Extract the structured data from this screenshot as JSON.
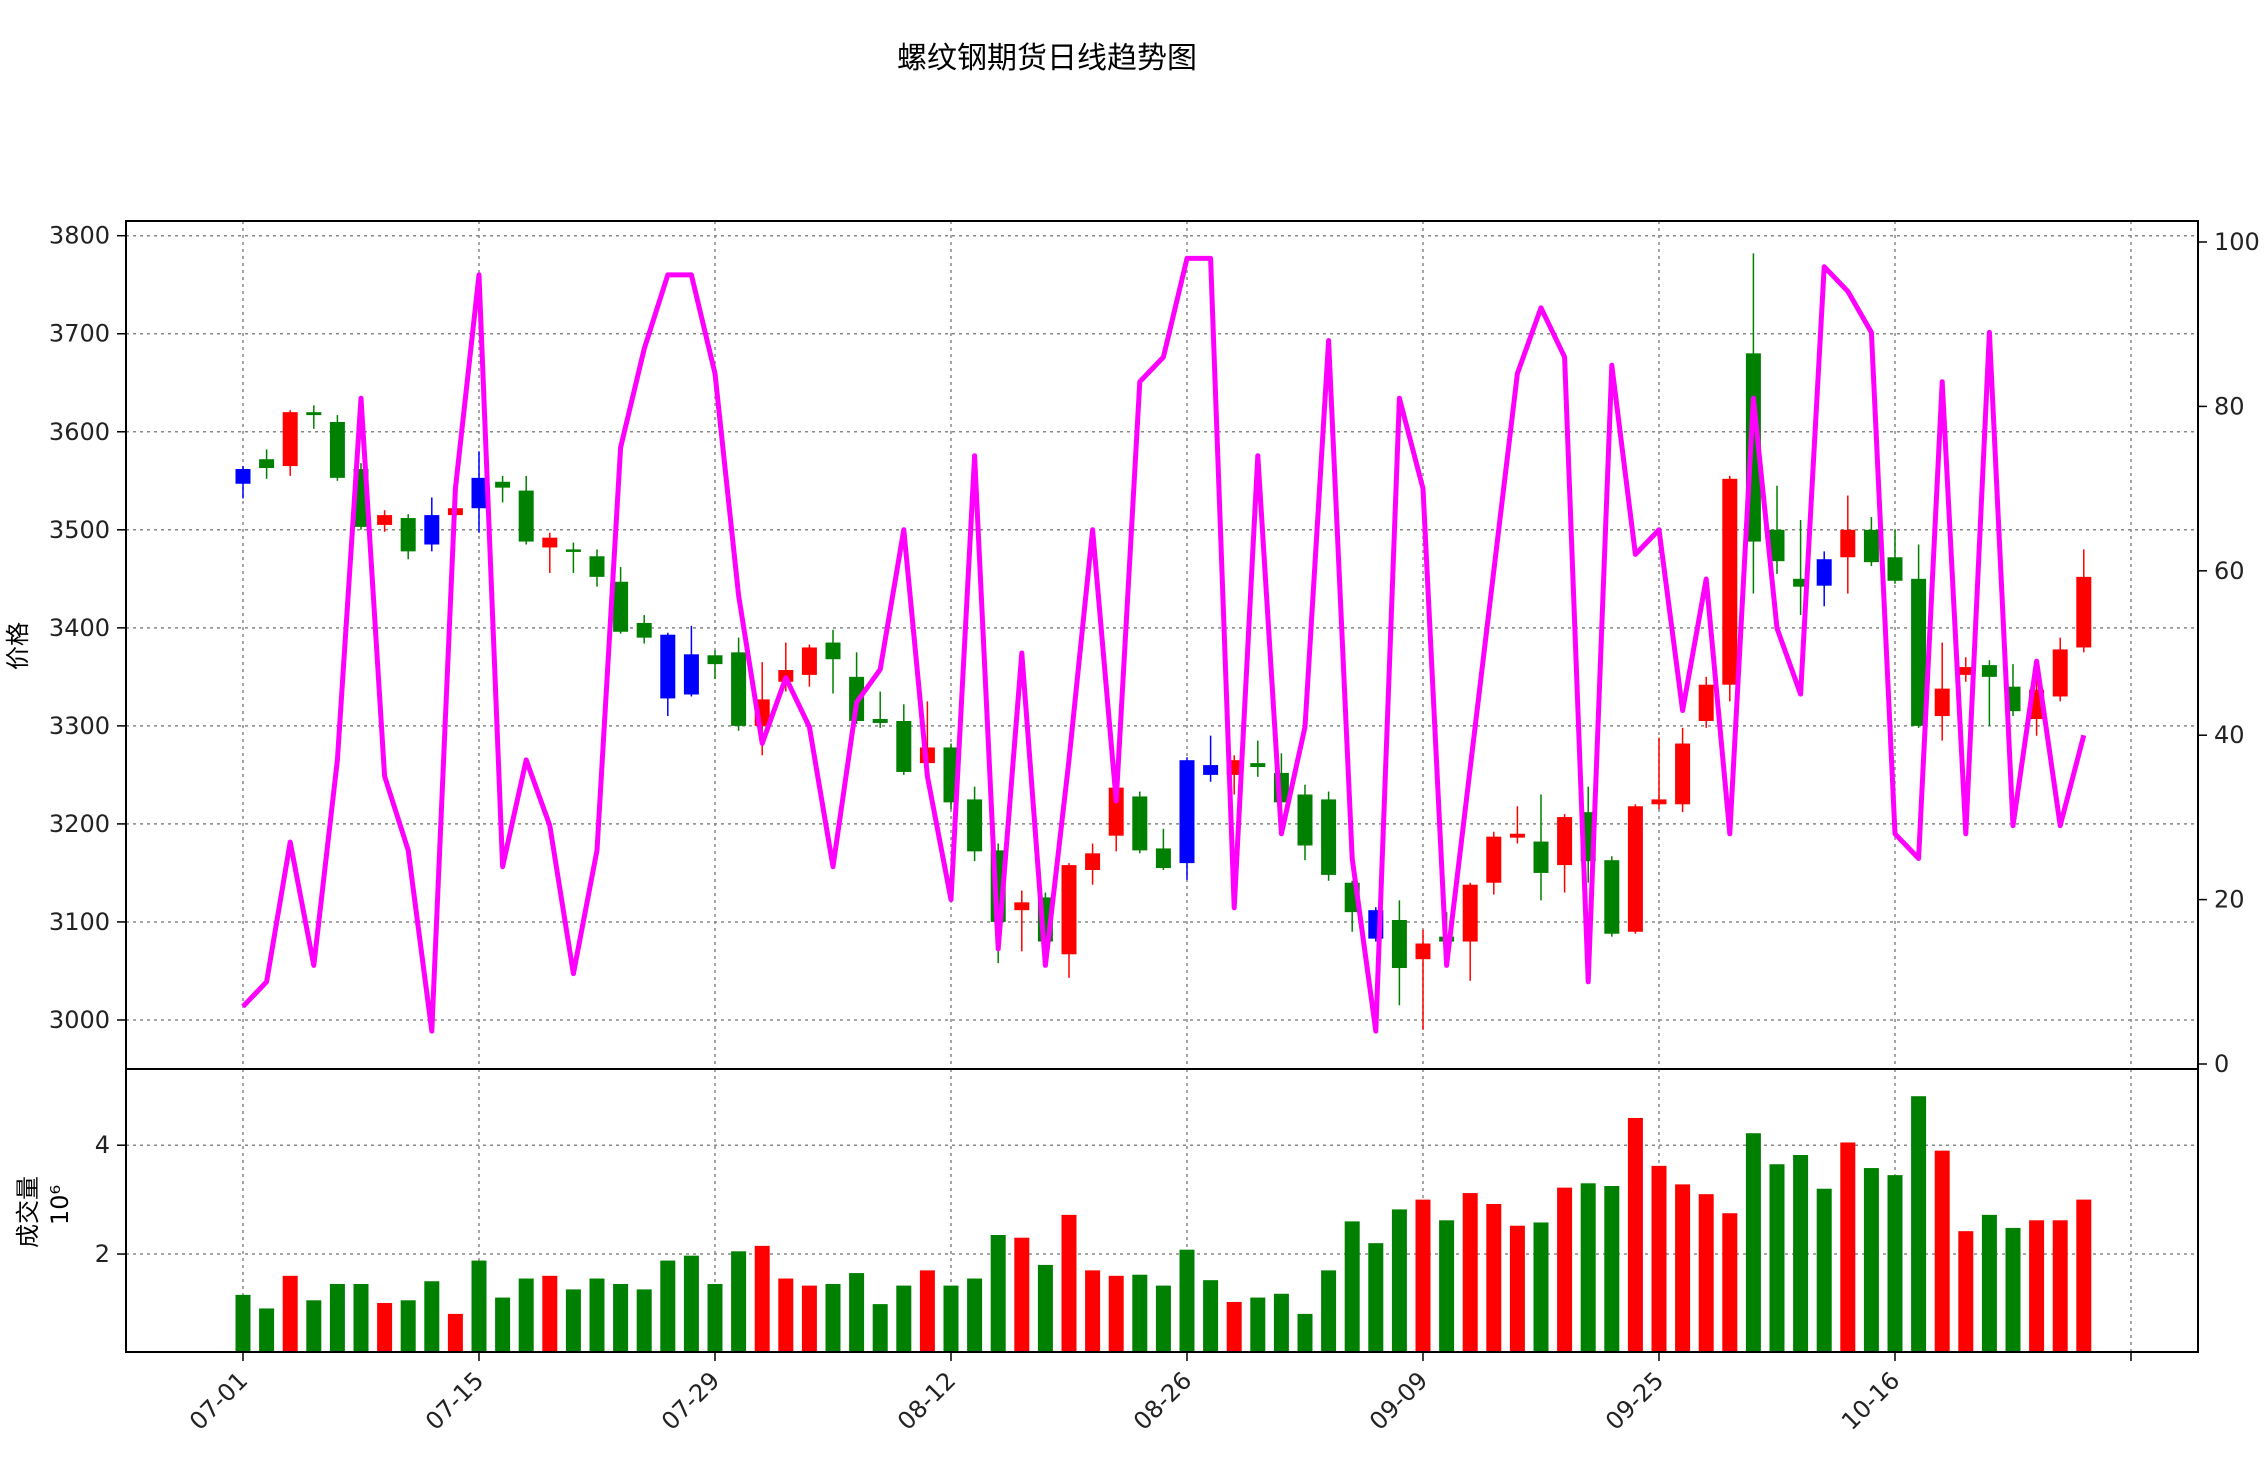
{
  "chart_data": {
    "type": "candlestick",
    "title": "螺纹钢期货日线趋势图",
    "price_axis": {
      "label": "价格",
      "ylim": [
        2950,
        3815
      ],
      "ticks": [
        3000,
        3100,
        3200,
        3300,
        3400,
        3500,
        3600,
        3700,
        3800
      ]
    },
    "secondary_axis": {
      "ylim": [
        0,
        100
      ],
      "ticks": [
        0,
        20,
        40,
        60,
        80,
        100
      ]
    },
    "volume_axis": {
      "label": "成交量",
      "multiplier": "10⁶",
      "ylim": [
        0.2,
        5.4
      ],
      "ticks": [
        2,
        4
      ]
    },
    "x_tick_labels": [
      {
        "index": 0,
        "label": "07-01"
      },
      {
        "index": 10,
        "label": "07-15"
      },
      {
        "index": 20,
        "label": "07-29"
      },
      {
        "index": 30,
        "label": "08-12"
      },
      {
        "index": 40,
        "label": "08-26"
      },
      {
        "index": 50,
        "label": "09-09"
      },
      {
        "index": 60,
        "label": "09-25"
      },
      {
        "index": 70,
        "label": "10-16"
      },
      {
        "index": 80,
        "label": ""
      }
    ],
    "grid": true,
    "colors": {
      "up": "#ff0000",
      "down": "#008000",
      "flat": "#0000ff",
      "line": "#ff00ff"
    },
    "candles": [
      {
        "o": 3547,
        "c": 3562,
        "h": 3565,
        "l": 3532,
        "d": "flat"
      },
      {
        "o": 3572,
        "c": 3563,
        "h": 3582,
        "l": 3552,
        "d": "down"
      },
      {
        "o": 3565,
        "c": 3620,
        "h": 3622,
        "l": 3555,
        "d": "up"
      },
      {
        "o": 3620,
        "c": 3617,
        "h": 3627,
        "l": 3603,
        "d": "down"
      },
      {
        "o": 3610,
        "c": 3553,
        "h": 3617,
        "l": 3550,
        "d": "down"
      },
      {
        "o": 3562,
        "c": 3503,
        "h": 3568,
        "l": 3500,
        "d": "down"
      },
      {
        "o": 3505,
        "c": 3515,
        "h": 3520,
        "l": 3498,
        "d": "up"
      },
      {
        "o": 3512,
        "c": 3478,
        "h": 3516,
        "l": 3470,
        "d": "down"
      },
      {
        "o": 3515,
        "c": 3485,
        "h": 3533,
        "l": 3478,
        "d": "flat"
      },
      {
        "o": 3515,
        "c": 3522,
        "h": 3527,
        "l": 3512,
        "d": "up"
      },
      {
        "o": 3553,
        "c": 3522,
        "h": 3580,
        "l": 3497,
        "d": "flat"
      },
      {
        "o": 3549,
        "c": 3543,
        "h": 3555,
        "l": 3528,
        "d": "down"
      },
      {
        "o": 3540,
        "c": 3488,
        "h": 3555,
        "l": 3485,
        "d": "down"
      },
      {
        "o": 3482,
        "c": 3492,
        "h": 3497,
        "l": 3456,
        "d": "up"
      },
      {
        "o": 3480,
        "c": 3478,
        "h": 3487,
        "l": 3456,
        "d": "down"
      },
      {
        "o": 3473,
        "c": 3452,
        "h": 3480,
        "l": 3442,
        "d": "down"
      },
      {
        "o": 3447,
        "c": 3396,
        "h": 3462,
        "l": 3394,
        "d": "down"
      },
      {
        "o": 3405,
        "c": 3390,
        "h": 3413,
        "l": 3384,
        "d": "down"
      },
      {
        "o": 3393,
        "c": 3328,
        "h": 3395,
        "l": 3310,
        "d": "flat"
      },
      {
        "o": 3373,
        "c": 3332,
        "h": 3402,
        "l": 3330,
        "d": "flat"
      },
      {
        "o": 3372,
        "c": 3363,
        "h": 3377,
        "l": 3348,
        "d": "down"
      },
      {
        "o": 3375,
        "c": 3300,
        "h": 3390,
        "l": 3295,
        "d": "down"
      },
      {
        "o": 3300,
        "c": 3327,
        "h": 3365,
        "l": 3270,
        "d": "up"
      },
      {
        "o": 3345,
        "c": 3357,
        "h": 3385,
        "l": 3335,
        "d": "up"
      },
      {
        "o": 3352,
        "c": 3380,
        "h": 3383,
        "l": 3340,
        "d": "up"
      },
      {
        "o": 3385,
        "c": 3368,
        "h": 3398,
        "l": 3333,
        "d": "down"
      },
      {
        "o": 3350,
        "c": 3305,
        "h": 3375,
        "l": 3302,
        "d": "down"
      },
      {
        "o": 3307,
        "c": 3303,
        "h": 3335,
        "l": 3298,
        "d": "down"
      },
      {
        "o": 3305,
        "c": 3253,
        "h": 3322,
        "l": 3250,
        "d": "down"
      },
      {
        "o": 3262,
        "c": 3278,
        "h": 3325,
        "l": 3260,
        "d": "up"
      },
      {
        "o": 3278,
        "c": 3222,
        "h": 3282,
        "l": 3215,
        "d": "down"
      },
      {
        "o": 3225,
        "c": 3172,
        "h": 3238,
        "l": 3162,
        "d": "down"
      },
      {
        "o": 3173,
        "c": 3100,
        "h": 3180,
        "l": 3058,
        "d": "down"
      },
      {
        "o": 3112,
        "c": 3120,
        "h": 3132,
        "l": 3070,
        "d": "up"
      },
      {
        "o": 3125,
        "c": 3080,
        "h": 3130,
        "l": 3070,
        "d": "down"
      },
      {
        "o": 3067,
        "c": 3158,
        "h": 3160,
        "l": 3043,
        "d": "up"
      },
      {
        "o": 3153,
        "c": 3170,
        "h": 3180,
        "l": 3138,
        "d": "up"
      },
      {
        "o": 3188,
        "c": 3237,
        "h": 3240,
        "l": 3172,
        "d": "up"
      },
      {
        "o": 3228,
        "c": 3173,
        "h": 3233,
        "l": 3170,
        "d": "down"
      },
      {
        "o": 3175,
        "c": 3155,
        "h": 3195,
        "l": 3153,
        "d": "down"
      },
      {
        "o": 3265,
        "c": 3160,
        "h": 3268,
        "l": 3143,
        "d": "flat"
      },
      {
        "o": 3260,
        "c": 3250,
        "h": 3290,
        "l": 3243,
        "d": "flat"
      },
      {
        "o": 3250,
        "c": 3265,
        "h": 3270,
        "l": 3230,
        "d": "up"
      },
      {
        "o": 3262,
        "c": 3258,
        "h": 3285,
        "l": 3248,
        "d": "down"
      },
      {
        "o": 3252,
        "c": 3222,
        "h": 3272,
        "l": 3210,
        "d": "down"
      },
      {
        "o": 3230,
        "c": 3178,
        "h": 3240,
        "l": 3163,
        "d": "down"
      },
      {
        "o": 3225,
        "c": 3148,
        "h": 3233,
        "l": 3142,
        "d": "down"
      },
      {
        "o": 3140,
        "c": 3110,
        "h": 3142,
        "l": 3090,
        "d": "down"
      },
      {
        "o": 3112,
        "c": 3083,
        "h": 3115,
        "l": 3080,
        "d": "flat"
      },
      {
        "o": 3102,
        "c": 3053,
        "h": 3122,
        "l": 3015,
        "d": "down"
      },
      {
        "o": 3062,
        "c": 3078,
        "h": 3092,
        "l": 2990,
        "d": "up"
      },
      {
        "o": 3085,
        "c": 3080,
        "h": 3110,
        "l": 3075,
        "d": "down"
      },
      {
        "o": 3080,
        "c": 3138,
        "h": 3140,
        "l": 3040,
        "d": "up"
      },
      {
        "o": 3140,
        "c": 3187,
        "h": 3192,
        "l": 3128,
        "d": "up"
      },
      {
        "o": 3186,
        "c": 3190,
        "h": 3218,
        "l": 3180,
        "d": "up"
      },
      {
        "o": 3182,
        "c": 3150,
        "h": 3230,
        "l": 3122,
        "d": "down"
      },
      {
        "o": 3158,
        "c": 3207,
        "h": 3210,
        "l": 3130,
        "d": "up"
      },
      {
        "o": 3212,
        "c": 3162,
        "h": 3238,
        "l": 3140,
        "d": "down"
      },
      {
        "o": 3163,
        "c": 3088,
        "h": 3167,
        "l": 3085,
        "d": "down"
      },
      {
        "o": 3090,
        "c": 3218,
        "h": 3220,
        "l": 3088,
        "d": "up"
      },
      {
        "o": 3220,
        "c": 3225,
        "h": 3288,
        "l": 3215,
        "d": "up"
      },
      {
        "o": 3220,
        "c": 3282,
        "h": 3298,
        "l": 3212,
        "d": "up"
      },
      {
        "o": 3305,
        "c": 3342,
        "h": 3350,
        "l": 3298,
        "d": "up"
      },
      {
        "o": 3342,
        "c": 3552,
        "h": 3555,
        "l": 3325,
        "d": "up"
      },
      {
        "o": 3680,
        "c": 3488,
        "h": 3782,
        "l": 3435,
        "d": "down"
      },
      {
        "o": 3500,
        "c": 3468,
        "h": 3545,
        "l": 3455,
        "d": "down"
      },
      {
        "o": 3450,
        "c": 3442,
        "h": 3510,
        "l": 3413,
        "d": "down"
      },
      {
        "o": 3470,
        "c": 3443,
        "h": 3478,
        "l": 3422,
        "d": "flat"
      },
      {
        "o": 3472,
        "c": 3500,
        "h": 3535,
        "l": 3435,
        "d": "up"
      },
      {
        "o": 3500,
        "c": 3467,
        "h": 3513,
        "l": 3463,
        "d": "down"
      },
      {
        "o": 3472,
        "c": 3448,
        "h": 3500,
        "l": 3445,
        "d": "down"
      },
      {
        "o": 3450,
        "c": 3300,
        "h": 3485,
        "l": 3298,
        "d": "down"
      },
      {
        "o": 3310,
        "c": 3338,
        "h": 3385,
        "l": 3285,
        "d": "up"
      },
      {
        "o": 3352,
        "c": 3360,
        "h": 3370,
        "l": 3345,
        "d": "up"
      },
      {
        "o": 3362,
        "c": 3350,
        "h": 3367,
        "l": 3300,
        "d": "down"
      },
      {
        "o": 3340,
        "c": 3315,
        "h": 3363,
        "l": 3310,
        "d": "down"
      },
      {
        "o": 3307,
        "c": 3337,
        "h": 3350,
        "l": 3290,
        "d": "up"
      },
      {
        "o": 3330,
        "c": 3378,
        "h": 3390,
        "l": 3325,
        "d": "up"
      },
      {
        "o": 3380,
        "c": 3452,
        "h": 3480,
        "l": 3375,
        "d": "up"
      }
    ],
    "oscillator": [
      7,
      10,
      27,
      12,
      37,
      81,
      35,
      26,
      4,
      70,
      96,
      24,
      37,
      29,
      11,
      26,
      75,
      87,
      96,
      96,
      84,
      57,
      39,
      47,
      41,
      24,
      44,
      48,
      65,
      35,
      20,
      74,
      14,
      50,
      12,
      37,
      65,
      32,
      83,
      86,
      98,
      98,
      19,
      74,
      28,
      41,
      88,
      25,
      4,
      81,
      70,
      12,
      36,
      60,
      84,
      92,
      86,
      10,
      85,
      62,
      65,
      43,
      59,
      28,
      81,
      53,
      45,
      97,
      94,
      89,
      28,
      25,
      83,
      28,
      89,
      29,
      49,
      29,
      40
    ],
    "volume": [
      1.25,
      1.0,
      1.6,
      1.15,
      1.45,
      1.45,
      1.1,
      1.15,
      1.5,
      0.9,
      1.88,
      1.2,
      1.55,
      1.6,
      1.35,
      1.55,
      1.45,
      1.35,
      1.88,
      1.97,
      1.45,
      2.05,
      2.15,
      1.55,
      1.42,
      1.45,
      1.65,
      1.08,
      1.42,
      1.7,
      1.42,
      1.55,
      2.35,
      2.3,
      1.8,
      2.72,
      1.7,
      1.6,
      1.62,
      1.42,
      2.08,
      1.52,
      1.12,
      1.2,
      1.27,
      0.9,
      1.7,
      2.6,
      2.2,
      2.82,
      3.0,
      2.62,
      3.12,
      2.92,
      2.52,
      2.58,
      3.22,
      3.3,
      3.25,
      4.5,
      3.62,
      3.28,
      3.1,
      2.75,
      4.22,
      3.65,
      3.82,
      3.2,
      4.05,
      3.58,
      3.45,
      4.9,
      3.9,
      2.42,
      2.72,
      2.48,
      2.62,
      2.62,
      3.0
    ]
  }
}
